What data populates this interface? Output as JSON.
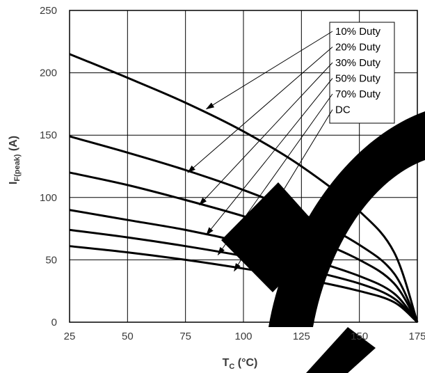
{
  "chart_data": {
    "type": "line",
    "title": "",
    "xlabel": {
      "main": "T",
      "sub": "C",
      "unit": " (°C)"
    },
    "ylabel": {
      "main": "I",
      "sub": "F(peak)",
      "unit": " (A)"
    },
    "xlim": [
      25,
      175
    ],
    "ylim": [
      0,
      250
    ],
    "xticks": [
      25,
      50,
      75,
      100,
      125,
      150,
      175
    ],
    "yticks": [
      0,
      50,
      100,
      150,
      200,
      250
    ],
    "grid": true,
    "legend_position": "top-right",
    "x": [
      25,
      50,
      75,
      100,
      125,
      150,
      165,
      175
    ],
    "series": [
      {
        "name": "10% Duty",
        "values": [
          215,
          196,
          176,
          153,
          125,
          89,
          56,
          0
        ]
      },
      {
        "name": "20% Duty",
        "values": [
          149,
          136,
          122,
          106,
          87,
          62,
          39,
          0
        ]
      },
      {
        "name": "30% Duty",
        "values": [
          120,
          110,
          98,
          85,
          70,
          50,
          31,
          0
        ]
      },
      {
        "name": "50% Duty",
        "values": [
          90,
          82,
          74,
          64,
          52,
          37,
          23,
          0
        ]
      },
      {
        "name": "70% Duty",
        "values": [
          74,
          68,
          61,
          53,
          43,
          31,
          19,
          0
        ]
      },
      {
        "name": "DC",
        "values": [
          61,
          56,
          50,
          43,
          35,
          25,
          16,
          0
        ]
      }
    ],
    "pointer_targets": [
      {
        "x": 84,
        "y": 171
      },
      {
        "x": 76,
        "y": 120
      },
      {
        "x": 81,
        "y": 94
      },
      {
        "x": 84,
        "y": 70
      },
      {
        "x": 89,
        "y": 54
      },
      {
        "x": 96,
        "y": 41
      }
    ],
    "colors": {
      "line": "#000000",
      "grid": "#000000",
      "text": "#3a3a3a",
      "watermark": "#000000"
    }
  }
}
